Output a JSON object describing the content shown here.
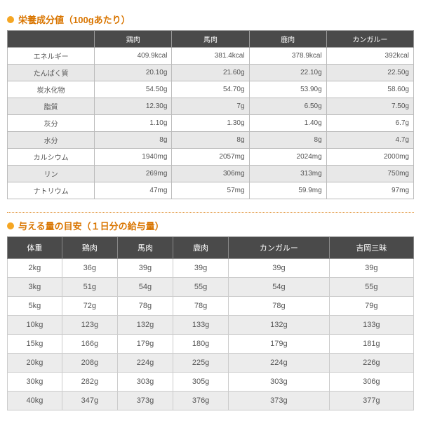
{
  "section1": {
    "title": "栄養成分値（100gあたり）",
    "columns": [
      "",
      "鶏肉",
      "馬肉",
      "鹿肉",
      "カンガルー"
    ],
    "rows": [
      [
        "エネルギー",
        "409.9kcal",
        "381.4kcal",
        "378.9kcal",
        "392kcal"
      ],
      [
        "たんぱく質",
        "20.10g",
        "21.60g",
        "22.10g",
        "22.50g"
      ],
      [
        "炭水化物",
        "54.50g",
        "54.70g",
        "53.90g",
        "58.60g"
      ],
      [
        "脂質",
        "12.30g",
        "7g",
        "6.50g",
        "7.50g"
      ],
      [
        "灰分",
        "1.10g",
        "1.30g",
        "1.40g",
        "6.7g"
      ],
      [
        "水分",
        "8g",
        "8g",
        "8g",
        "4.7g"
      ],
      [
        "カルシウム",
        "1940mg",
        "2057mg",
        "2024mg",
        "2000mg"
      ],
      [
        "リン",
        "269mg",
        "306mg",
        "313mg",
        "750mg"
      ],
      [
        "ナトリウム",
        "47mg",
        "57mg",
        "59.9mg",
        "97mg"
      ]
    ]
  },
  "section2": {
    "title": "与える量の目安（１日分の給与量）",
    "columns": [
      "体重",
      "鶏肉",
      "馬肉",
      "鹿肉",
      "カンガルー",
      "吉岡三昧"
    ],
    "rows": [
      [
        "2kg",
        "36g",
        "39g",
        "39g",
        "39g",
        "39g"
      ],
      [
        "3kg",
        "51g",
        "54g",
        "55g",
        "54g",
        "55g"
      ],
      [
        "5kg",
        "72g",
        "78g",
        "78g",
        "78g",
        "79g"
      ],
      [
        "10kg",
        "123g",
        "132g",
        "133g",
        "132g",
        "133g"
      ],
      [
        "15kg",
        "166g",
        "179g",
        "180g",
        "179g",
        "181g"
      ],
      [
        "20kg",
        "208g",
        "224g",
        "225g",
        "224g",
        "226g"
      ],
      [
        "30kg",
        "282g",
        "303g",
        "305g",
        "303g",
        "306g"
      ],
      [
        "40kg",
        "347g",
        "373g",
        "376g",
        "373g",
        "377g"
      ]
    ]
  }
}
